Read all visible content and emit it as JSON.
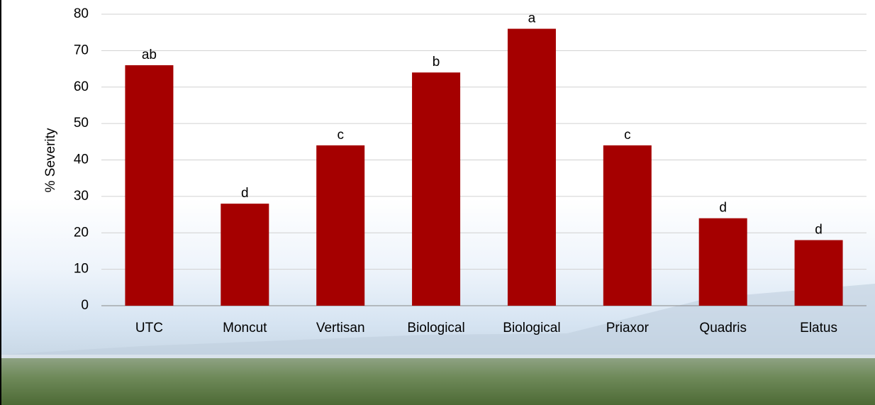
{
  "chart_data": {
    "type": "bar",
    "y_label": "% Severity",
    "categories": [
      "UTC",
      "Moncut",
      "Vertisan",
      "Biological",
      "Biological",
      "Priaxor",
      "Quadris",
      "Elatus"
    ],
    "values": [
      66,
      28,
      44,
      64,
      76,
      44,
      24,
      18
    ],
    "annotations": [
      "ab",
      "d",
      "c",
      "b",
      "a",
      "c",
      "d",
      "d"
    ],
    "color": "#a50000",
    "ylim": [
      0,
      80
    ],
    "yticks": [
      0,
      10,
      20,
      30,
      40,
      50,
      60,
      70,
      80
    ],
    "grid": true
  }
}
